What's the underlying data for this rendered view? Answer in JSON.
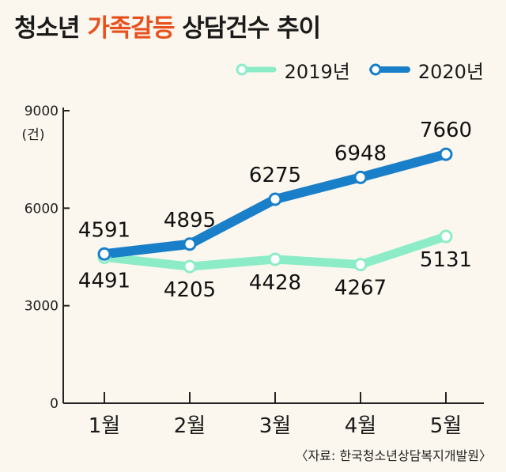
{
  "title": {
    "prefix": "청소년 ",
    "highlight": "가족갈등",
    "suffix": " 상담건수 추이"
  },
  "source": "〈자료: 한국청소년상담복지개발원〉",
  "colors": {
    "series_2019": "#8cecc8",
    "series_2020": "#1a7fc9",
    "highlight": "#e8501e",
    "background": "#fbf7ee"
  },
  "chart_data": {
    "type": "line",
    "categories": [
      "1월",
      "2월",
      "3월",
      "4월",
      "5월"
    ],
    "series": [
      {
        "name": "2019년",
        "values": [
          4491,
          4205,
          4428,
          4267,
          5131
        ]
      },
      {
        "name": "2020년",
        "values": [
          4591,
          4895,
          6275,
          6948,
          7660
        ]
      }
    ],
    "ylim": [
      0,
      9000
    ],
    "yticks": [
      "0",
      "3000",
      "6000",
      "9000"
    ],
    "yunit": "(건)",
    "legend_position": "top-right",
    "grid": false
  }
}
